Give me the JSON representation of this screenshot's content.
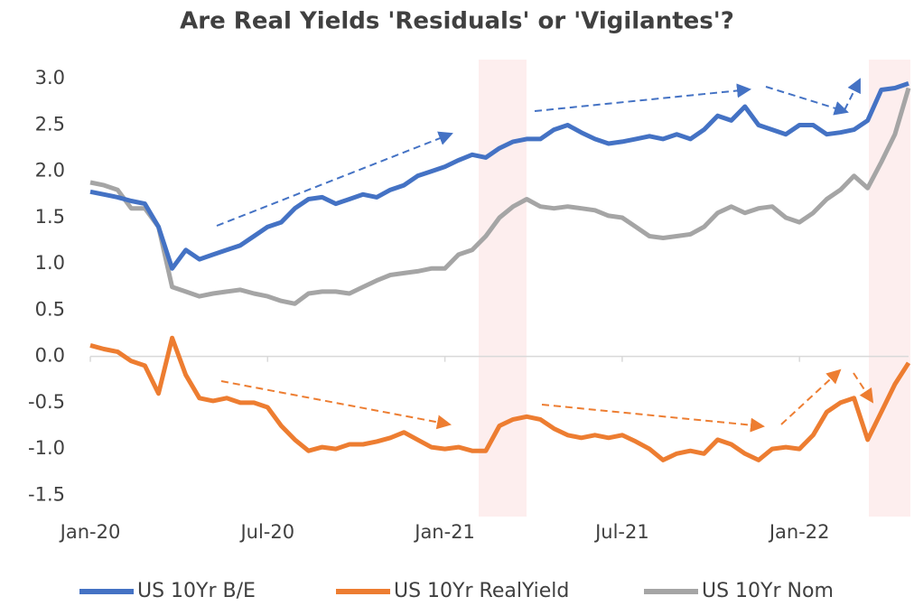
{
  "chart_data": {
    "type": "line",
    "title": "Are Real Yields 'Residuals' or 'Vigilantes'?",
    "categories": [
      "Jan-20",
      null,
      null,
      null,
      null,
      null,
      null,
      null,
      null,
      null,
      null,
      null,
      null,
      "Jul-20",
      null,
      null,
      null,
      null,
      null,
      null,
      null,
      null,
      null,
      null,
      null,
      null,
      "Jan-21",
      null,
      null,
      null,
      null,
      null,
      null,
      null,
      null,
      null,
      null,
      null,
      null,
      "Jul-21",
      null,
      null,
      null,
      null,
      null,
      null,
      null,
      null,
      null,
      null,
      null,
      null,
      "Jan-22",
      null,
      null,
      null,
      null,
      null,
      null,
      null,
      null
    ],
    "series": [
      {
        "name": "US 10Yr B/E",
        "color": "#4472c4",
        "values": [
          1.78,
          1.75,
          1.72,
          1.68,
          1.65,
          1.4,
          0.95,
          1.15,
          1.05,
          1.1,
          1.15,
          1.2,
          1.3,
          1.4,
          1.45,
          1.6,
          1.7,
          1.72,
          1.65,
          1.7,
          1.75,
          1.72,
          1.8,
          1.85,
          1.95,
          2.0,
          2.05,
          2.12,
          2.18,
          2.15,
          2.25,
          2.32,
          2.35,
          2.35,
          2.45,
          2.5,
          2.42,
          2.35,
          2.3,
          2.32,
          2.35,
          2.38,
          2.35,
          2.4,
          2.35,
          2.45,
          2.6,
          2.55,
          2.7,
          2.5,
          2.45,
          2.4,
          2.5,
          2.5,
          2.4,
          2.42,
          2.45,
          2.55,
          2.88,
          2.9,
          2.95
        ]
      },
      {
        "name": "US 10Yr RealYield",
        "color": "#ed7d31",
        "values": [
          0.12,
          0.08,
          0.05,
          -0.05,
          -0.1,
          -0.4,
          0.2,
          -0.2,
          -0.45,
          -0.48,
          -0.45,
          -0.5,
          -0.5,
          -0.55,
          -0.75,
          -0.9,
          -1.02,
          -0.98,
          -1.0,
          -0.95,
          -0.95,
          -0.92,
          -0.88,
          -0.82,
          -0.9,
          -0.98,
          -1.0,
          -0.98,
          -1.02,
          -1.02,
          -0.75,
          -0.68,
          -0.65,
          -0.68,
          -0.78,
          -0.85,
          -0.88,
          -0.85,
          -0.88,
          -0.85,
          -0.92,
          -1.0,
          -1.12,
          -1.05,
          -1.02,
          -1.05,
          -0.9,
          -0.95,
          -1.05,
          -1.12,
          -1.0,
          -0.98,
          -1.0,
          -0.85,
          -0.6,
          -0.5,
          -0.45,
          -0.9,
          -0.6,
          -0.3,
          -0.07
        ]
      },
      {
        "name": "US 10Yr Nom",
        "color": "#a5a5a5",
        "values": [
          1.88,
          1.85,
          1.8,
          1.6,
          1.6,
          1.4,
          0.75,
          0.7,
          0.65,
          0.68,
          0.7,
          0.72,
          0.68,
          0.65,
          0.6,
          0.57,
          0.68,
          0.7,
          0.7,
          0.68,
          0.75,
          0.82,
          0.88,
          0.9,
          0.92,
          0.95,
          0.95,
          1.1,
          1.15,
          1.3,
          1.5,
          1.62,
          1.7,
          1.62,
          1.6,
          1.62,
          1.6,
          1.58,
          1.52,
          1.5,
          1.4,
          1.3,
          1.28,
          1.3,
          1.32,
          1.4,
          1.55,
          1.62,
          1.55,
          1.6,
          1.62,
          1.5,
          1.45,
          1.55,
          1.7,
          1.8,
          1.95,
          1.82,
          2.1,
          2.4,
          2.9
        ]
      }
    ],
    "ylim": [
      -1.75,
      3.1
    ],
    "yticks": [
      {
        "value": -1.5,
        "label": "-1.5"
      },
      {
        "value": -1.0,
        "label": "-1.0"
      },
      -0.5,
      {
        "value": 0,
        "label": "0.0"
      },
      0.5,
      {
        "value": 1.0,
        "label": "1.0"
      },
      1.5,
      {
        "value": 2.0,
        "label": "2.0"
      },
      2.5,
      {
        "value": 3.0,
        "label": "3.0"
      }
    ],
    "legend": "bottom"
  }
}
